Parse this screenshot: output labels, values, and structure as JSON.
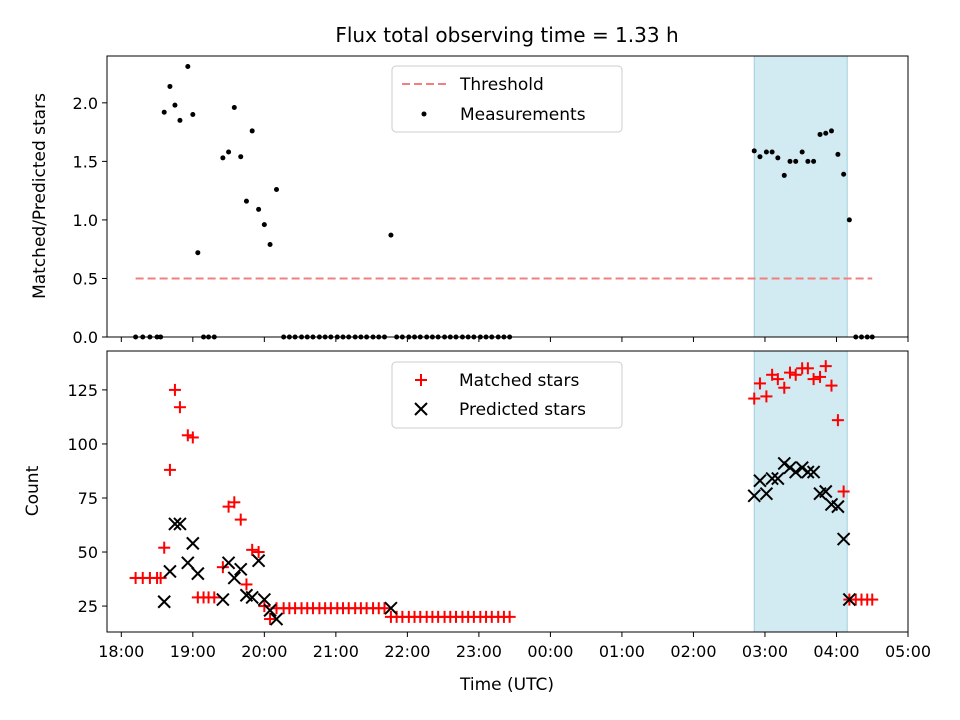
{
  "chart_data": [
    {
      "type": "scatter",
      "title": "Flux total observing time = 1.33 h",
      "xlabel": "",
      "ylabel": "Matched/Predicted stars",
      "xlim": [
        17.8,
        29.0
      ],
      "ylim": [
        0.0,
        2.4
      ],
      "yticks": [
        0.0,
        0.5,
        1.0,
        1.5,
        2.0
      ],
      "ytick_labels": [
        "0.0",
        "0.5",
        "1.0",
        "1.5",
        "2.0"
      ],
      "shaded_span": [
        26.85,
        28.15
      ],
      "legend": {
        "position": "upper center",
        "entries": [
          "Threshold",
          "Measurements"
        ]
      },
      "threshold": {
        "name": "Threshold",
        "x": [
          18.2,
          28.5
        ],
        "y": 0.5,
        "color": "#f08080"
      },
      "series": [
        {
          "name": "Measurements",
          "color": "#000000",
          "x": [
            18.2,
            18.3,
            18.4,
            18.5,
            18.55,
            18.6,
            18.68,
            18.75,
            18.82,
            18.93,
            19.0,
            19.07,
            19.15,
            19.22,
            19.3,
            19.42,
            19.5,
            19.58,
            19.67,
            19.75,
            19.83,
            19.92,
            20.0,
            20.08,
            20.17,
            20.27,
            20.35,
            20.43,
            20.52,
            20.6,
            20.68,
            20.77,
            20.85,
            20.93,
            21.02,
            21.1,
            21.18,
            21.27,
            21.35,
            21.43,
            21.52,
            21.6,
            21.68,
            21.77,
            21.85,
            21.93,
            22.02,
            22.1,
            22.18,
            22.27,
            22.35,
            22.43,
            22.52,
            22.6,
            22.68,
            22.77,
            22.85,
            22.93,
            23.02,
            23.1,
            23.18,
            23.27,
            23.35,
            23.43,
            26.85,
            26.93,
            27.02,
            27.1,
            27.18,
            27.27,
            27.35,
            27.43,
            27.52,
            27.6,
            27.68,
            27.77,
            27.85,
            27.93,
            28.02,
            28.1,
            28.18,
            28.27,
            28.35,
            28.43,
            28.5
          ],
          "y": [
            0,
            0,
            0,
            0,
            0,
            1.92,
            2.14,
            1.98,
            1.85,
            2.31,
            1.9,
            0.72,
            0,
            0,
            0,
            1.53,
            1.58,
            1.96,
            1.54,
            1.16,
            1.76,
            1.09,
            0.96,
            0.79,
            1.26,
            0,
            0,
            0,
            0,
            0,
            0,
            0,
            0,
            0,
            0,
            0,
            0,
            0,
            0,
            0,
            0,
            0,
            0,
            0.87,
            0,
            0,
            0,
            0,
            0,
            0,
            0,
            0,
            0,
            0,
            0,
            0,
            0,
            0,
            0,
            0,
            0,
            0,
            0,
            0,
            1.59,
            1.54,
            1.58,
            1.58,
            1.53,
            1.38,
            1.5,
            1.5,
            1.58,
            1.5,
            1.5,
            1.73,
            1.74,
            1.76,
            1.56,
            1.39,
            1.0,
            0,
            0,
            0,
            0
          ]
        }
      ]
    },
    {
      "type": "scatter",
      "xlabel": "Time (UTC)",
      "ylabel": "Count",
      "xlim": [
        17.8,
        29.0
      ],
      "ylim": [
        13,
        143
      ],
      "xticks": [
        18,
        19,
        20,
        21,
        22,
        23,
        24,
        25,
        26,
        27,
        28,
        29
      ],
      "xtick_labels": [
        "18:00",
        "19:00",
        "20:00",
        "21:00",
        "22:00",
        "23:00",
        "00:00",
        "01:00",
        "02:00",
        "03:00",
        "04:00",
        "05:00"
      ],
      "yticks": [
        25,
        50,
        75,
        100,
        125
      ],
      "ytick_labels": [
        "25",
        "50",
        "75",
        "100",
        "125"
      ],
      "shaded_span": [
        26.85,
        28.15
      ],
      "legend": {
        "position": "upper center",
        "entries": [
          "Matched stars",
          "Predicted stars"
        ]
      },
      "series": [
        {
          "name": "Matched stars",
          "marker": "plus",
          "color": "#ff0000",
          "x": [
            18.2,
            18.3,
            18.4,
            18.5,
            18.55,
            18.6,
            18.68,
            18.75,
            18.82,
            18.93,
            19.0,
            19.07,
            19.15,
            19.22,
            19.3,
            19.42,
            19.5,
            19.58,
            19.67,
            19.75,
            19.83,
            19.92,
            20.0,
            20.08,
            20.17,
            20.27,
            20.35,
            20.43,
            20.52,
            20.6,
            20.68,
            20.77,
            20.85,
            20.93,
            21.02,
            21.1,
            21.18,
            21.27,
            21.35,
            21.43,
            21.52,
            21.6,
            21.68,
            21.77,
            21.85,
            21.93,
            22.02,
            22.1,
            22.18,
            22.27,
            22.35,
            22.43,
            22.52,
            22.6,
            22.68,
            22.77,
            22.85,
            22.93,
            23.02,
            23.1,
            23.18,
            23.27,
            23.35,
            23.43,
            26.85,
            26.93,
            27.02,
            27.1,
            27.18,
            27.27,
            27.35,
            27.43,
            27.52,
            27.6,
            27.68,
            27.77,
            27.85,
            27.93,
            28.02,
            28.1,
            28.18,
            28.27,
            28.35,
            28.43,
            28.5
          ],
          "y": [
            38,
            38,
            38,
            38,
            38,
            52,
            88,
            125,
            117,
            104,
            103,
            29,
            29,
            29,
            29,
            43,
            71,
            73,
            65,
            35,
            51,
            50,
            25,
            19,
            24,
            24,
            24,
            24,
            24,
            24,
            24,
            24,
            24,
            24,
            24,
            24,
            24,
            24,
            24,
            24,
            24,
            24,
            24,
            20,
            20,
            20,
            20,
            20,
            20,
            20,
            20,
            20,
            20,
            20,
            20,
            20,
            20,
            20,
            20,
            20,
            20,
            20,
            20,
            20,
            121,
            128,
            122,
            132,
            130,
            126,
            133,
            132,
            135,
            135,
            130,
            131,
            136,
            127,
            111,
            78,
            28,
            28,
            28,
            28,
            28
          ]
        },
        {
          "name": "Predicted stars",
          "marker": "x",
          "color": "#000000",
          "x": [
            18.6,
            18.68,
            18.75,
            18.82,
            18.93,
            19.0,
            19.07,
            19.42,
            19.5,
            19.58,
            19.67,
            19.75,
            19.83,
            19.92,
            20.0,
            20.08,
            20.17,
            21.77,
            26.85,
            26.93,
            27.02,
            27.1,
            27.18,
            27.27,
            27.35,
            27.43,
            27.52,
            27.6,
            27.68,
            27.77,
            27.85,
            27.93,
            28.02,
            28.1,
            28.18
          ],
          "y": [
            27,
            41,
            63,
            63,
            45,
            54,
            40,
            28,
            45,
            38,
            42,
            30,
            29,
            46,
            28,
            23,
            19,
            24,
            76,
            83,
            77,
            84,
            84,
            91,
            89,
            87,
            89,
            87,
            87,
            77,
            78,
            72,
            71,
            56,
            28
          ]
        }
      ]
    }
  ]
}
